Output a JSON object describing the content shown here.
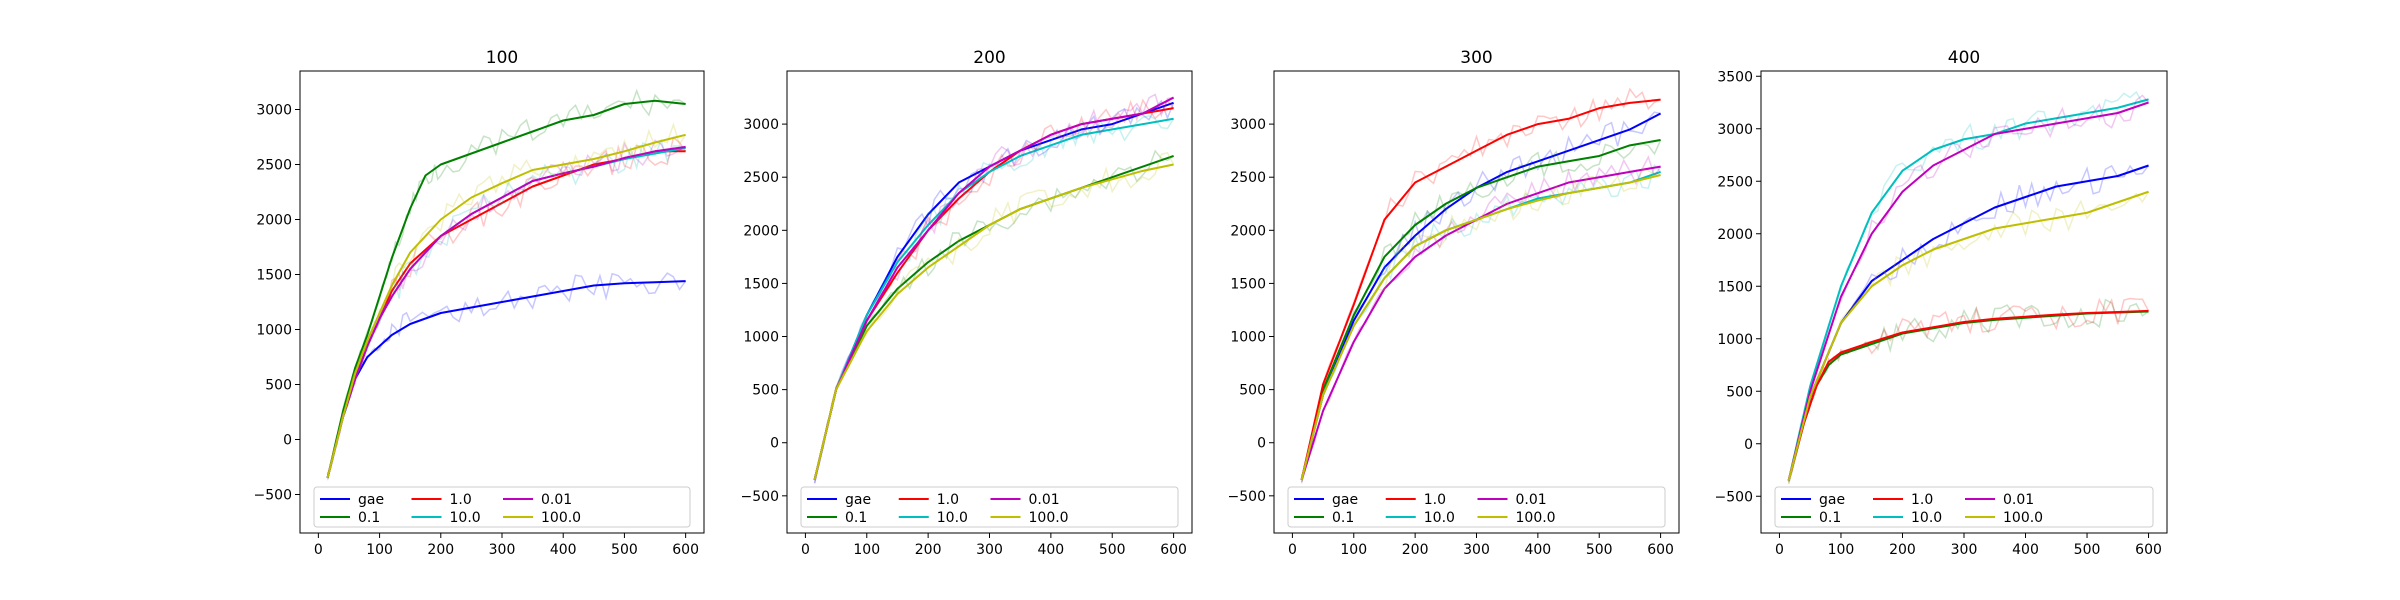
{
  "chart_data": [
    {
      "type": "line",
      "title": "100",
      "xlabel": "",
      "ylabel": "",
      "xlim": [
        -30,
        630
      ],
      "ylim": [
        -850,
        3350
      ],
      "xticks": [
        0,
        100,
        200,
        300,
        400,
        500,
        600
      ],
      "yticks": [
        -500,
        0,
        500,
        1000,
        1500,
        2000,
        2500,
        3000
      ],
      "grid": false,
      "legend_position": "bottom-center",
      "series": [
        {
          "name": "gae",
          "color": "#0000ff",
          "x": [
            15,
            40,
            60,
            80,
            100,
            120,
            150,
            200,
            250,
            300,
            350,
            400,
            450,
            500,
            550,
            600
          ],
          "y": [
            -350,
            200,
            550,
            750,
            850,
            950,
            1050,
            1150,
            1200,
            1250,
            1300,
            1350,
            1400,
            1420,
            1430,
            1440
          ]
        },
        {
          "name": "0.1",
          "color": "#008000",
          "x": [
            15,
            40,
            60,
            80,
            100,
            120,
            150,
            175,
            200,
            250,
            300,
            350,
            400,
            450,
            500,
            550,
            600
          ],
          "y": [
            -350,
            250,
            650,
            950,
            1300,
            1650,
            2100,
            2400,
            2500,
            2600,
            2700,
            2800,
            2900,
            2950,
            3050,
            3080,
            3050
          ]
        },
        {
          "name": "1.0",
          "color": "#ff0000",
          "x": [
            15,
            40,
            60,
            80,
            100,
            120,
            150,
            200,
            250,
            300,
            350,
            400,
            450,
            500,
            550,
            600
          ],
          "y": [
            -350,
            200,
            550,
            850,
            1100,
            1350,
            1600,
            1850,
            2000,
            2150,
            2300,
            2400,
            2500,
            2550,
            2620,
            2620
          ]
        },
        {
          "name": "10.0",
          "color": "#00bfbf",
          "x": [
            15,
            40,
            60,
            80,
            100,
            120,
            150,
            200,
            250,
            300,
            350,
            400,
            450,
            500,
            550,
            600
          ],
          "y": [
            -350,
            200,
            550,
            850,
            1100,
            1300,
            1550,
            1850,
            2050,
            2200,
            2350,
            2420,
            2480,
            2550,
            2600,
            2650
          ]
        },
        {
          "name": "0.01",
          "color": "#bf00bf",
          "x": [
            15,
            40,
            60,
            80,
            100,
            120,
            150,
            200,
            250,
            300,
            350,
            400,
            450,
            500,
            550,
            600
          ],
          "y": [
            -350,
            200,
            550,
            850,
            1100,
            1300,
            1550,
            1850,
            2050,
            2200,
            2350,
            2420,
            2480,
            2560,
            2620,
            2660
          ]
        },
        {
          "name": "100.0",
          "color": "#bfbf00",
          "x": [
            15,
            40,
            60,
            80,
            100,
            120,
            150,
            200,
            250,
            300,
            350,
            400,
            450,
            500,
            550,
            600
          ],
          "y": [
            -350,
            200,
            600,
            900,
            1150,
            1400,
            1700,
            2000,
            2200,
            2330,
            2450,
            2500,
            2550,
            2620,
            2700,
            2770
          ]
        }
      ]
    },
    {
      "type": "line",
      "title": "200",
      "xlabel": "",
      "ylabel": "",
      "xlim": [
        -30,
        630
      ],
      "ylim": [
        -850,
        3500
      ],
      "xticks": [
        0,
        100,
        200,
        300,
        400,
        500,
        600
      ],
      "yticks": [
        -500,
        0,
        500,
        1000,
        1500,
        2000,
        2500,
        3000
      ],
      "grid": false,
      "legend_position": "bottom-center",
      "series": [
        {
          "name": "gae",
          "color": "#0000ff",
          "x": [
            15,
            50,
            100,
            150,
            200,
            250,
            300,
            350,
            400,
            450,
            500,
            550,
            600
          ],
          "y": [
            -350,
            500,
            1200,
            1750,
            2150,
            2450,
            2600,
            2750,
            2850,
            2950,
            3000,
            3100,
            3200
          ]
        },
        {
          "name": "0.1",
          "color": "#008000",
          "x": [
            15,
            50,
            100,
            150,
            200,
            250,
            300,
            350,
            400,
            450,
            500,
            550,
            600
          ],
          "y": [
            -350,
            500,
            1100,
            1450,
            1700,
            1900,
            2050,
            2200,
            2300,
            2400,
            2500,
            2600,
            2700
          ]
        },
        {
          "name": "1.0",
          "color": "#ff0000",
          "x": [
            15,
            50,
            100,
            150,
            200,
            250,
            300,
            350,
            400,
            450,
            500,
            550,
            600
          ],
          "y": [
            -350,
            500,
            1150,
            1600,
            2000,
            2300,
            2550,
            2750,
            2900,
            3000,
            3050,
            3100,
            3150
          ]
        },
        {
          "name": "10.0",
          "color": "#00bfbf",
          "x": [
            15,
            50,
            100,
            150,
            200,
            250,
            300,
            350,
            400,
            450,
            500,
            550,
            600
          ],
          "y": [
            -350,
            500,
            1200,
            1700,
            2050,
            2350,
            2550,
            2700,
            2800,
            2900,
            2950,
            3000,
            3050
          ]
        },
        {
          "name": "0.01",
          "color": "#bf00bf",
          "x": [
            15,
            50,
            100,
            150,
            200,
            250,
            300,
            350,
            400,
            450,
            500,
            550,
            600
          ],
          "y": [
            -350,
            500,
            1150,
            1650,
            2000,
            2350,
            2600,
            2750,
            2900,
            3000,
            3050,
            3100,
            3250
          ]
        },
        {
          "name": "100.0",
          "color": "#bfbf00",
          "x": [
            15,
            50,
            100,
            150,
            200,
            250,
            300,
            350,
            400,
            450,
            500,
            550,
            600
          ],
          "y": [
            -350,
            500,
            1050,
            1400,
            1650,
            1850,
            2050,
            2200,
            2300,
            2400,
            2480,
            2560,
            2620
          ]
        }
      ]
    },
    {
      "type": "line",
      "title": "300",
      "xlabel": "",
      "ylabel": "",
      "xlim": [
        -30,
        630
      ],
      "ylim": [
        -850,
        3500
      ],
      "xticks": [
        0,
        100,
        200,
        300,
        400,
        500,
        600
      ],
      "yticks": [
        -500,
        0,
        500,
        1000,
        1500,
        2000,
        2500,
        3000
      ],
      "grid": false,
      "legend_position": "bottom-center",
      "series": [
        {
          "name": "gae",
          "color": "#0000ff",
          "x": [
            15,
            50,
            100,
            150,
            200,
            250,
            300,
            350,
            400,
            450,
            500,
            550,
            600
          ],
          "y": [
            -350,
            450,
            1150,
            1650,
            1950,
            2200,
            2400,
            2550,
            2650,
            2750,
            2850,
            2950,
            3100
          ]
        },
        {
          "name": "0.1",
          "color": "#008000",
          "x": [
            15,
            50,
            100,
            150,
            200,
            250,
            300,
            350,
            400,
            450,
            500,
            550,
            600
          ],
          "y": [
            -350,
            500,
            1200,
            1750,
            2050,
            2250,
            2400,
            2500,
            2600,
            2650,
            2700,
            2800,
            2850
          ]
        },
        {
          "name": "1.0",
          "color": "#ff0000",
          "x": [
            15,
            50,
            100,
            150,
            200,
            250,
            300,
            350,
            400,
            450,
            500,
            550,
            600
          ],
          "y": [
            -350,
            550,
            1300,
            2100,
            2450,
            2600,
            2750,
            2900,
            3000,
            3050,
            3150,
            3200,
            3230
          ]
        },
        {
          "name": "10.0",
          "color": "#00bfbf",
          "x": [
            15,
            50,
            100,
            150,
            200,
            250,
            300,
            350,
            400,
            450,
            500,
            550,
            600
          ],
          "y": [
            -350,
            450,
            1100,
            1550,
            1850,
            2000,
            2100,
            2200,
            2300,
            2350,
            2400,
            2450,
            2550
          ]
        },
        {
          "name": "0.01",
          "color": "#bf00bf",
          "x": [
            15,
            50,
            100,
            150,
            200,
            250,
            300,
            350,
            400,
            450,
            500,
            550,
            600
          ],
          "y": [
            -350,
            300,
            950,
            1450,
            1750,
            1950,
            2100,
            2250,
            2350,
            2450,
            2500,
            2550,
            2600
          ]
        },
        {
          "name": "100.0",
          "color": "#bfbf00",
          "x": [
            15,
            50,
            100,
            150,
            200,
            250,
            300,
            350,
            400,
            450,
            500,
            550,
            600
          ],
          "y": [
            -350,
            450,
            1100,
            1550,
            1850,
            2000,
            2100,
            2200,
            2280,
            2350,
            2400,
            2450,
            2520
          ]
        }
      ]
    },
    {
      "type": "line",
      "title": "400",
      "xlabel": "",
      "ylabel": "",
      "xlim": [
        -30,
        630
      ],
      "ylim": [
        -850,
        3550
      ],
      "xticks": [
        0,
        100,
        200,
        300,
        400,
        500,
        600
      ],
      "yticks": [
        -500,
        0,
        500,
        1000,
        1500,
        2000,
        2500,
        3000,
        3500
      ],
      "grid": false,
      "legend_position": "bottom-center",
      "series": [
        {
          "name": "gae",
          "color": "#0000ff",
          "x": [
            15,
            50,
            100,
            150,
            200,
            250,
            300,
            350,
            400,
            450,
            500,
            550,
            600
          ],
          "y": [
            -350,
            450,
            1150,
            1550,
            1750,
            1950,
            2100,
            2250,
            2350,
            2450,
            2500,
            2550,
            2650
          ]
        },
        {
          "name": "0.1",
          "color": "#008000",
          "x": [
            15,
            40,
            60,
            80,
            100,
            150,
            200,
            250,
            300,
            350,
            400,
            450,
            500,
            550,
            600
          ],
          "y": [
            -350,
            200,
            550,
            750,
            850,
            950,
            1050,
            1100,
            1150,
            1180,
            1200,
            1220,
            1240,
            1250,
            1260
          ]
        },
        {
          "name": "1.0",
          "color": "#ff0000",
          "x": [
            15,
            40,
            60,
            80,
            100,
            150,
            200,
            250,
            300,
            350,
            400,
            450,
            500,
            550,
            600
          ],
          "y": [
            -350,
            200,
            550,
            780,
            870,
            970,
            1060,
            1110,
            1160,
            1190,
            1210,
            1230,
            1245,
            1255,
            1265
          ]
        },
        {
          "name": "10.0",
          "color": "#00bfbf",
          "x": [
            15,
            50,
            100,
            150,
            200,
            250,
            300,
            350,
            400,
            450,
            500,
            550,
            600
          ],
          "y": [
            -350,
            550,
            1500,
            2200,
            2600,
            2800,
            2900,
            2950,
            3050,
            3100,
            3150,
            3200,
            3280
          ]
        },
        {
          "name": "0.01",
          "color": "#bf00bf",
          "x": [
            15,
            50,
            100,
            150,
            200,
            250,
            300,
            350,
            400,
            450,
            500,
            550,
            600
          ],
          "y": [
            -350,
            500,
            1400,
            2000,
            2400,
            2650,
            2800,
            2950,
            3000,
            3050,
            3100,
            3150,
            3250
          ]
        },
        {
          "name": "100.0",
          "color": "#bfbf00",
          "x": [
            15,
            50,
            100,
            150,
            200,
            250,
            300,
            350,
            400,
            450,
            500,
            550,
            600
          ],
          "y": [
            -350,
            450,
            1150,
            1500,
            1700,
            1850,
            1950,
            2050,
            2100,
            2150,
            2200,
            2300,
            2400
          ]
        }
      ]
    }
  ]
}
